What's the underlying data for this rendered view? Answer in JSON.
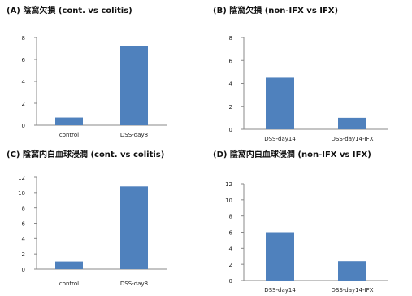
{
  "chart_data": [
    {
      "type": "bar",
      "title": "(A) 陰窩欠損 (cont. vs colitis)",
      "categories": [
        "control",
        "DSS-day8"
      ],
      "series": [
        {
          "values": [
            0.7,
            7.2
          ]
        }
      ],
      "yticks": [
        "0",
        "2",
        "4",
        "6",
        "8"
      ],
      "ylim": [
        0,
        8
      ],
      "grid": false,
      "color": "#4f81bd"
    },
    {
      "type": "bar",
      "title": "(B) 陰窩欠損 (non-IFX vs IFX)",
      "categories": [
        "DSS-day14",
        "DSS-day14-IFX"
      ],
      "series": [
        {
          "values": [
            4.5,
            1.0
          ]
        }
      ],
      "yticks": [
        "0",
        "2",
        "4",
        "6",
        "8"
      ],
      "ylim": [
        0,
        8
      ],
      "grid": false,
      "color": "#4f81bd"
    },
    {
      "type": "bar",
      "title": "(C) 陰窩内白血球浸潤 (cont. vs colitis)",
      "categories": [
        "control",
        "DSS-day8"
      ],
      "series": [
        {
          "values": [
            1.0,
            10.8
          ]
        }
      ],
      "yticks": [
        "0",
        "2",
        "4",
        "6",
        "8",
        "10",
        "12"
      ],
      "ylim": [
        0,
        12
      ],
      "grid": false,
      "color": "#4f81bd"
    },
    {
      "type": "bar",
      "title": "(D) 陰窩内白血球浸潤 (non-IFX vs IFX)",
      "categories": [
        "DSS-day14",
        "DSS-day14-IFX"
      ],
      "series": [
        {
          "values": [
            6.0,
            2.4
          ]
        }
      ],
      "yticks": [
        "0",
        "2",
        "4",
        "6",
        "8",
        "10",
        "12"
      ],
      "ylim": [
        0,
        12
      ],
      "grid": false,
      "color": "#4f81bd"
    }
  ]
}
